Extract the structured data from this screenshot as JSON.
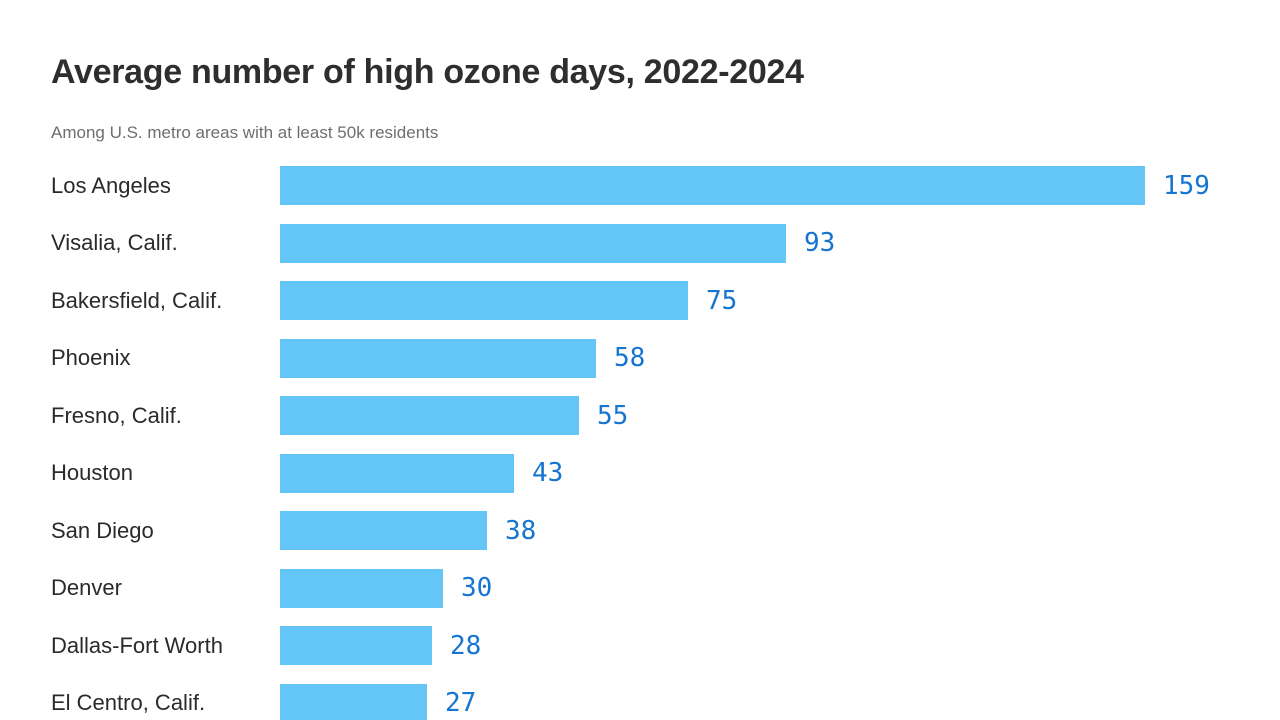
{
  "header": {
    "title": "Average number of high ozone days, 2022-2024",
    "subtitle": "Among U.S. metro areas with at least 50k residents"
  },
  "chart_data": {
    "type": "bar",
    "orientation": "horizontal",
    "title": "Average number of high ozone days, 2022-2024",
    "subtitle": "Among U.S. metro areas with at least 50k residents",
    "categories": [
      "Los Angeles",
      "Visalia, Calif.",
      "Bakersfield, Calif.",
      "Phoenix",
      "Fresno, Calif.",
      "Houston",
      "San Diego",
      "Denver",
      "Dallas-Fort Worth",
      "El Centro, Calif."
    ],
    "values": [
      159,
      93,
      75,
      58,
      55,
      43,
      38,
      30,
      28,
      27
    ],
    "xlim": [
      0,
      159
    ],
    "grid": false,
    "legend_position": "none",
    "value_labels_shown": true,
    "colors": {
      "bar": "#63c6f7",
      "value_label": "#1575d0",
      "category_label": "#2a2a2a",
      "title": "#2e2e2e",
      "subtitle": "#6e6e6e"
    }
  }
}
